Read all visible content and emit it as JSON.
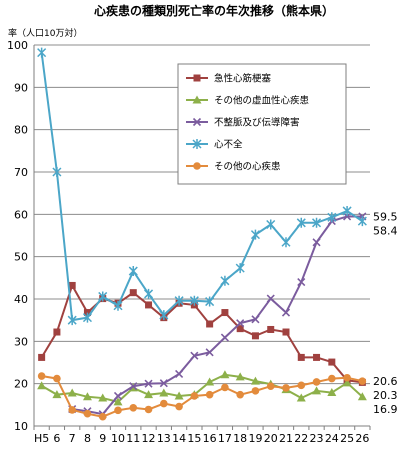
{
  "chart_data": {
    "type": "line",
    "title": "心疾患の種類別死亡率の年次推移（熊本県）",
    "ylabel": "率（人口10万対）",
    "xlabel": "",
    "ylim": [
      10,
      100
    ],
    "yticks": [
      10,
      20,
      30,
      40,
      50,
      60,
      70,
      80,
      90,
      100
    ],
    "grid": "horizontal",
    "legend_position": "top-right",
    "categories": [
      "H5",
      "6",
      "7",
      "8",
      "9",
      "10",
      "11",
      "12",
      "13",
      "14",
      "15",
      "16",
      "17",
      "18",
      "19",
      "20",
      "21",
      "22",
      "23",
      "24",
      "25",
      "26"
    ],
    "series": [
      {
        "name": "急性心筋梗塞",
        "color": "#A0413F",
        "marker": "square",
        "values": [
          26.2,
          32.2,
          43.2,
          36.8,
          40.1,
          39.0,
          41.5,
          38.6,
          35.6,
          39.0,
          38.6,
          34.1,
          36.8,
          33.0,
          31.3,
          32.8,
          32.2,
          26.2,
          26.2,
          25.1,
          20.8,
          20.3
        ]
      },
      {
        "name": "その他の虚血性心疾患",
        "color": "#8DB04A",
        "marker": "triangle",
        "values": [
          19.5,
          17.4,
          17.8,
          16.9,
          16.6,
          15.7,
          19.0,
          17.4,
          17.8,
          17.1,
          17.4,
          20.4,
          22.1,
          21.6,
          20.6,
          19.9,
          18.6,
          16.6,
          18.3,
          17.9,
          20.2,
          16.9
        ]
      },
      {
        "name": "不整脈及び伝導障害",
        "color": "#7B5C9E",
        "marker": "x",
        "values": [
          null,
          null,
          14.0,
          13.5,
          12.8,
          17.1,
          19.4,
          20.0,
          20.1,
          22.3,
          26.6,
          27.4,
          30.9,
          34.3,
          35.2,
          40.1,
          36.8,
          44.0,
          53.4,
          58.4,
          59.5,
          59.5
        ]
      },
      {
        "name": "心不全",
        "color": "#4BA6C8",
        "marker": "star",
        "values": [
          98.2,
          70.0,
          35.0,
          35.6,
          40.6,
          38.4,
          46.6,
          41.2,
          36.2,
          39.6,
          39.6,
          39.4,
          44.3,
          47.3,
          55.2,
          57.6,
          53.4,
          58.0,
          58.0,
          59.3,
          60.8,
          58.4
        ]
      },
      {
        "name": "その他の心疾患",
        "color": "#E38B3C",
        "marker": "circle",
        "values": [
          21.8,
          21.2,
          13.8,
          12.9,
          12.2,
          13.7,
          14.3,
          13.9,
          15.3,
          14.6,
          17.1,
          17.4,
          19.1,
          17.4,
          18.3,
          19.4,
          19.0,
          19.6,
          20.4,
          21.2,
          21.4,
          20.6
        ]
      }
    ],
    "end_labels": [
      {
        "text": "59.5",
        "series": 2
      },
      {
        "text": "58.4",
        "series": 3
      },
      {
        "text": "20.6",
        "series": 4
      },
      {
        "text": "20.3",
        "series": 0
      },
      {
        "text": "16.9",
        "series": 1
      }
    ]
  }
}
